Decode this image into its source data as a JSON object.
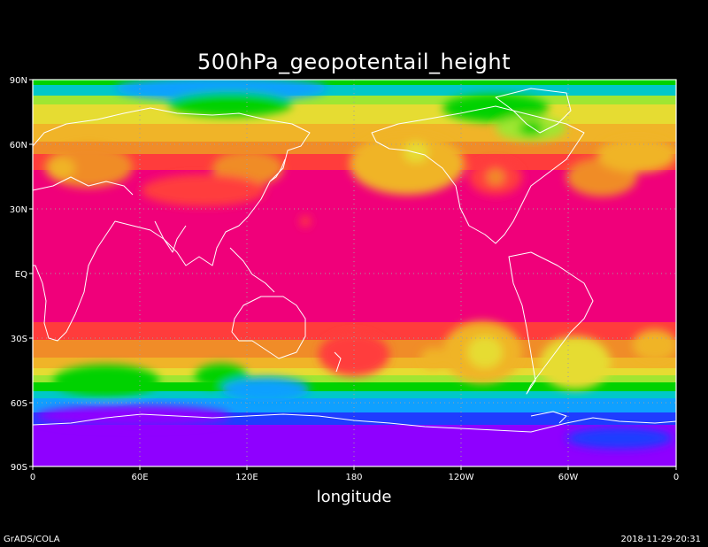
{
  "title": "500hPa_geopotentail_height",
  "x_axis_label": "longitude",
  "footer_left": "GrADS/COLA",
  "footer_right": "2018-11-29-20:31",
  "lat_ticks": [
    "90N",
    "60N",
    "30N",
    "EQ",
    "30S",
    "60S",
    "90S"
  ],
  "lon_ticks": [
    "0",
    "60E",
    "120E",
    "180",
    "120W",
    "60W",
    "0"
  ],
  "colors": {
    "background": "#000000",
    "frame": "#ffffff",
    "coastline": "#ffffff",
    "gridline": "#a0a0a0"
  },
  "contour_colors": [
    "#8f00ff",
    "#1f3cff",
    "#0fa0ff",
    "#00c8c8",
    "#00d200",
    "#a0e632",
    "#e6dc32",
    "#f0b428",
    "#f08c28",
    "#ff3c3c",
    "#f0007a"
  ],
  "features": {
    "grid": "dotted",
    "map_projection": "equirectangular",
    "coastlines": "white outlines"
  }
}
